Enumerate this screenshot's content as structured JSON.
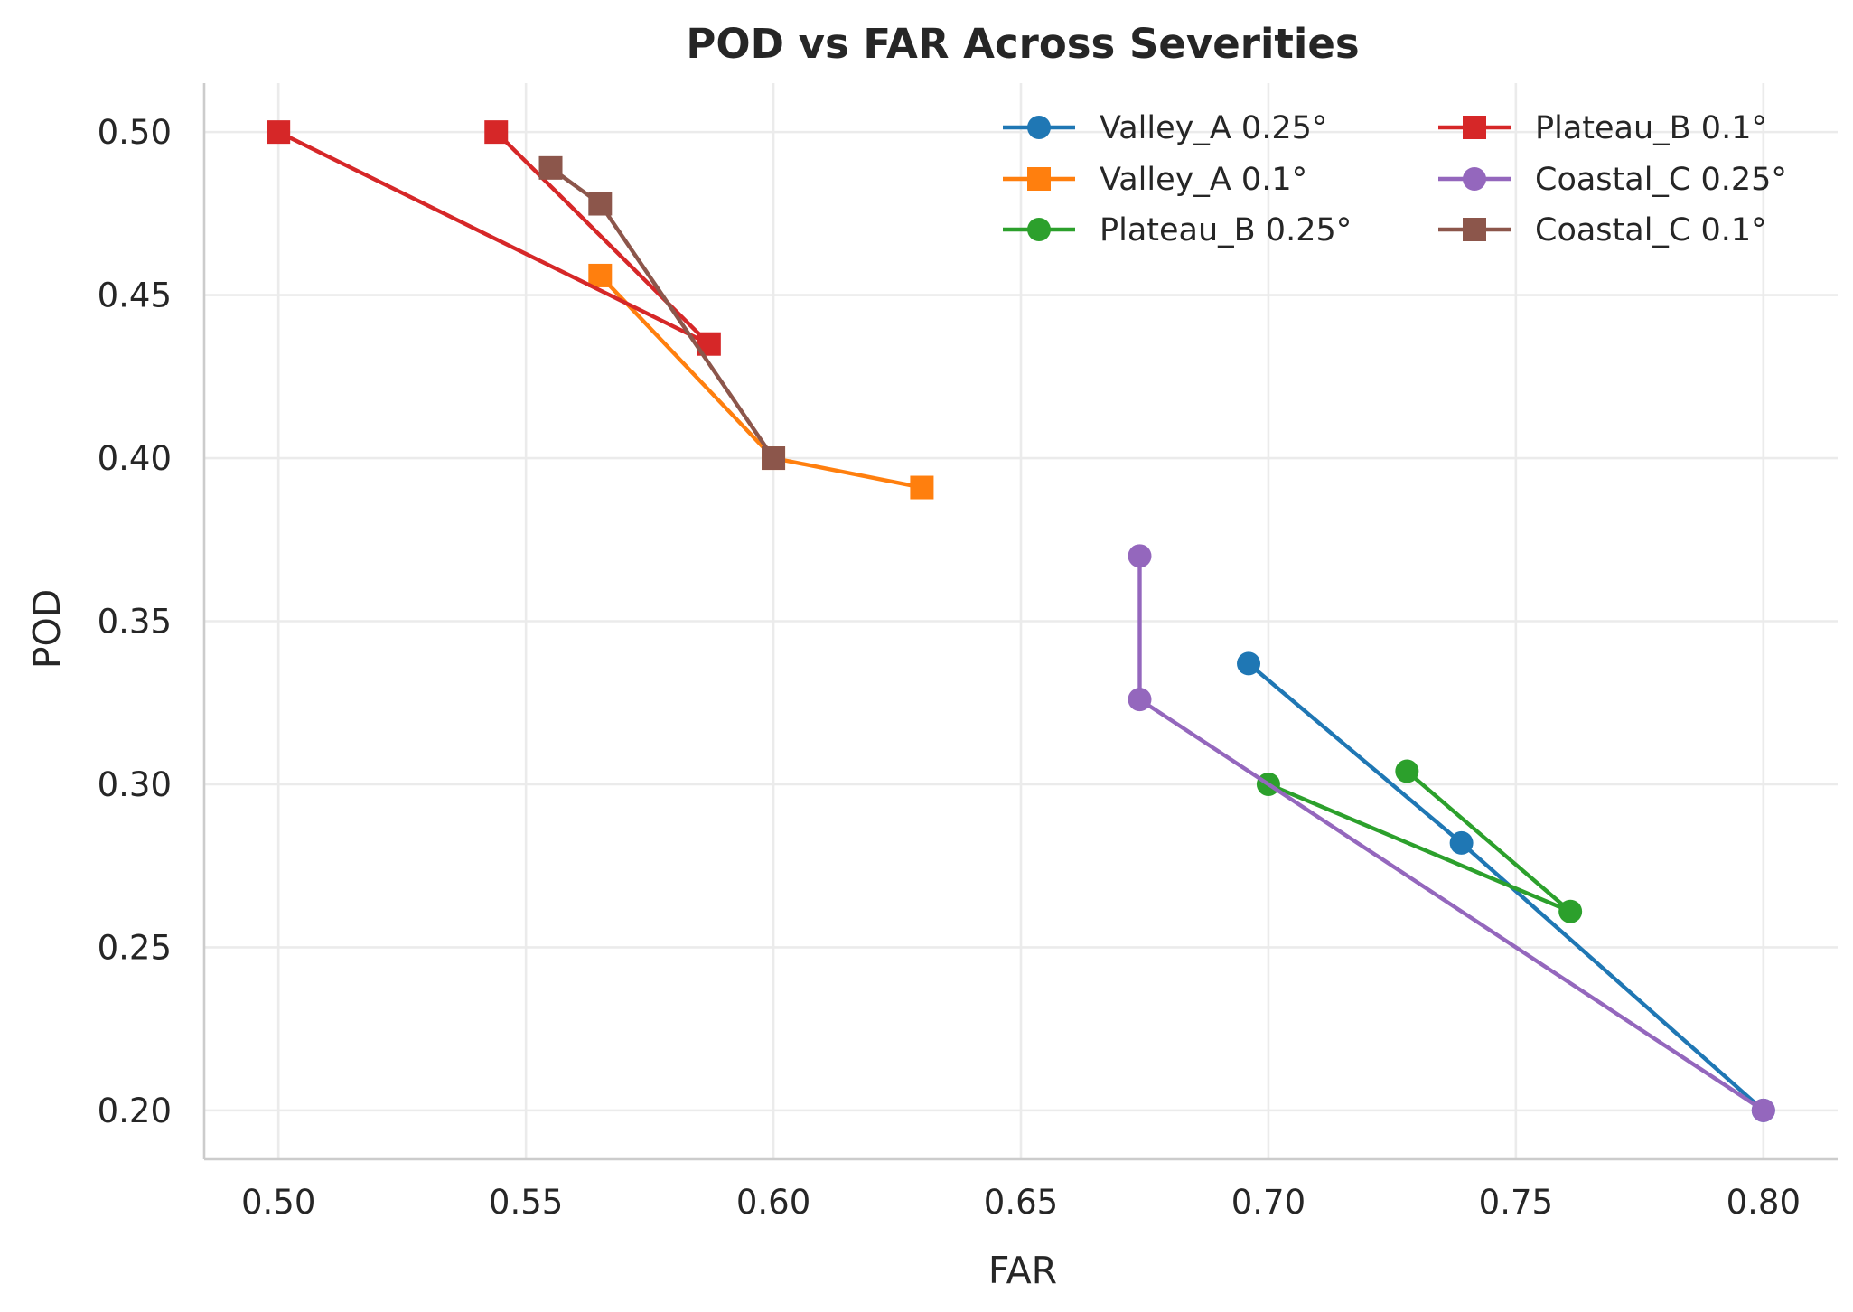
{
  "chart_data": {
    "type": "line",
    "title": "POD vs FAR Across Severities",
    "xlabel": "FAR",
    "ylabel": "POD",
    "xlim": [
      0.485,
      0.815
    ],
    "ylim": [
      0.185,
      0.515
    ],
    "xticks": [
      0.5,
      0.55,
      0.6,
      0.65,
      0.7,
      0.75,
      0.8
    ],
    "xtick_labels": [
      "0.50",
      "0.55",
      "0.60",
      "0.65",
      "0.70",
      "0.75",
      "0.80"
    ],
    "yticks": [
      0.2,
      0.25,
      0.3,
      0.35,
      0.4,
      0.45,
      0.5
    ],
    "ytick_labels": [
      "0.20",
      "0.25",
      "0.30",
      "0.35",
      "0.40",
      "0.45",
      "0.50"
    ],
    "grid": true,
    "legend_position": "top-right",
    "legend_columns": 2,
    "series": [
      {
        "name": "Valley_A 0.25°",
        "color": "#1f77b4",
        "marker": "circle",
        "points": [
          [
            0.696,
            0.337
          ],
          [
            0.739,
            0.282
          ],
          [
            0.8,
            0.2
          ]
        ]
      },
      {
        "name": "Valley_A 0.1°",
        "color": "#ff7f0e",
        "marker": "square",
        "points": [
          [
            0.565,
            0.456
          ],
          [
            0.6,
            0.4
          ],
          [
            0.63,
            0.391
          ]
        ]
      },
      {
        "name": "Plateau_B 0.25°",
        "color": "#2ca02c",
        "marker": "circle",
        "points": [
          [
            0.728,
            0.304
          ],
          [
            0.761,
            0.261
          ],
          [
            0.7,
            0.3
          ]
        ]
      },
      {
        "name": "Plateau_B 0.1°",
        "color": "#d62728",
        "marker": "square",
        "points": [
          [
            0.544,
            0.5
          ],
          [
            0.587,
            0.435
          ],
          [
            0.5,
            0.5
          ]
        ]
      },
      {
        "name": "Coastal_C 0.25°",
        "color": "#9467bd",
        "marker": "circle",
        "points": [
          [
            0.674,
            0.37
          ],
          [
            0.674,
            0.326
          ],
          [
            0.8,
            0.2
          ]
        ]
      },
      {
        "name": "Coastal_C 0.1°",
        "color": "#8c564b",
        "marker": "square",
        "points": [
          [
            0.555,
            0.489
          ],
          [
            0.565,
            0.478
          ],
          [
            0.6,
            0.4
          ]
        ]
      }
    ]
  }
}
